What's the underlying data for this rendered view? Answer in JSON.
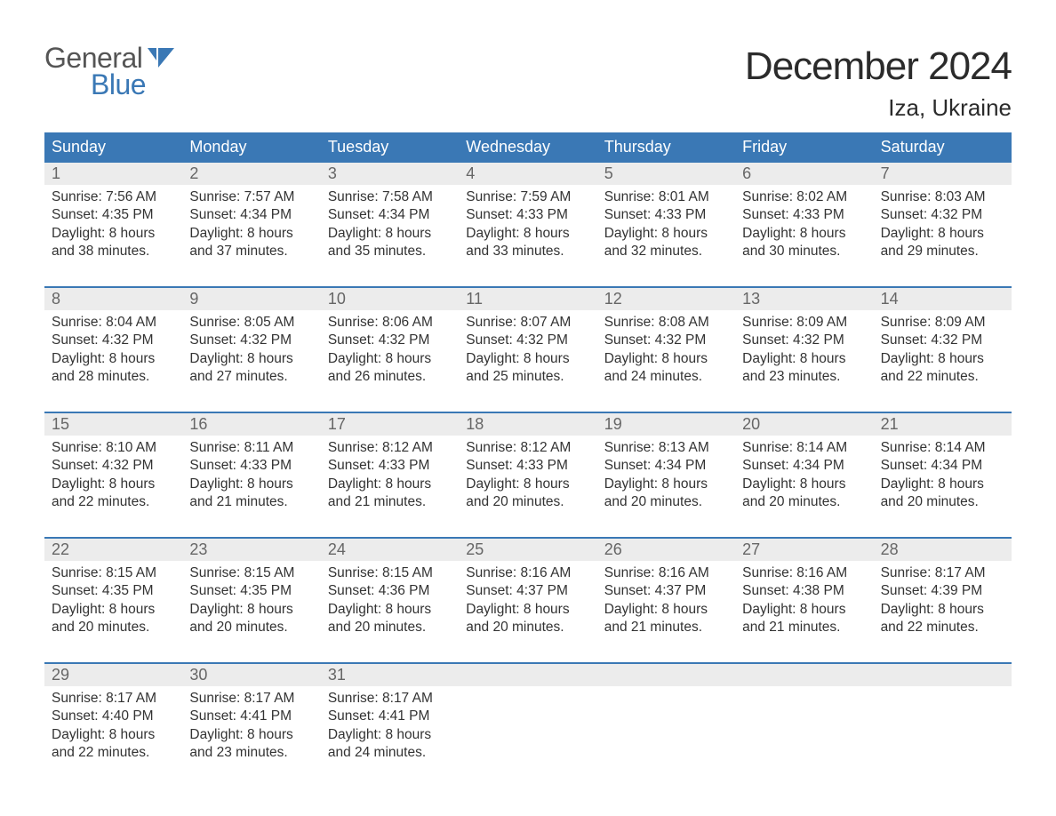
{
  "branding": {
    "logo_top": "General",
    "logo_bottom": "Blue",
    "logo_mark_color": "#3a78b5",
    "logo_text_gray": "#555555"
  },
  "header": {
    "title": "December 2024",
    "location": "Iza, Ukraine"
  },
  "style": {
    "header_bg": "#3a78b5",
    "header_fg": "#ffffff",
    "daynum_bg": "#ececec",
    "daynum_fg": "#666666",
    "border_color": "#3a78b5",
    "body_fg": "#333333",
    "background": "#ffffff",
    "title_fontsize": 44,
    "location_fontsize": 26,
    "weekday_fontsize": 18,
    "body_fontsize": 15.5
  },
  "weekdays": [
    "Sunday",
    "Monday",
    "Tuesday",
    "Wednesday",
    "Thursday",
    "Friday",
    "Saturday"
  ],
  "labels": {
    "sunrise": "Sunrise:",
    "sunset": "Sunset:",
    "daylight": "Daylight:",
    "hours": "hours",
    "and": "and",
    "minutes": "minutes."
  },
  "days": [
    {
      "n": 1,
      "sunrise": "7:56 AM",
      "sunset": "4:35 PM",
      "dl_h": 8,
      "dl_m": 38
    },
    {
      "n": 2,
      "sunrise": "7:57 AM",
      "sunset": "4:34 PM",
      "dl_h": 8,
      "dl_m": 37
    },
    {
      "n": 3,
      "sunrise": "7:58 AM",
      "sunset": "4:34 PM",
      "dl_h": 8,
      "dl_m": 35
    },
    {
      "n": 4,
      "sunrise": "7:59 AM",
      "sunset": "4:33 PM",
      "dl_h": 8,
      "dl_m": 33
    },
    {
      "n": 5,
      "sunrise": "8:01 AM",
      "sunset": "4:33 PM",
      "dl_h": 8,
      "dl_m": 32
    },
    {
      "n": 6,
      "sunrise": "8:02 AM",
      "sunset": "4:33 PM",
      "dl_h": 8,
      "dl_m": 30
    },
    {
      "n": 7,
      "sunrise": "8:03 AM",
      "sunset": "4:32 PM",
      "dl_h": 8,
      "dl_m": 29
    },
    {
      "n": 8,
      "sunrise": "8:04 AM",
      "sunset": "4:32 PM",
      "dl_h": 8,
      "dl_m": 28
    },
    {
      "n": 9,
      "sunrise": "8:05 AM",
      "sunset": "4:32 PM",
      "dl_h": 8,
      "dl_m": 27
    },
    {
      "n": 10,
      "sunrise": "8:06 AM",
      "sunset": "4:32 PM",
      "dl_h": 8,
      "dl_m": 26
    },
    {
      "n": 11,
      "sunrise": "8:07 AM",
      "sunset": "4:32 PM",
      "dl_h": 8,
      "dl_m": 25
    },
    {
      "n": 12,
      "sunrise": "8:08 AM",
      "sunset": "4:32 PM",
      "dl_h": 8,
      "dl_m": 24
    },
    {
      "n": 13,
      "sunrise": "8:09 AM",
      "sunset": "4:32 PM",
      "dl_h": 8,
      "dl_m": 23
    },
    {
      "n": 14,
      "sunrise": "8:09 AM",
      "sunset": "4:32 PM",
      "dl_h": 8,
      "dl_m": 22
    },
    {
      "n": 15,
      "sunrise": "8:10 AM",
      "sunset": "4:32 PM",
      "dl_h": 8,
      "dl_m": 22
    },
    {
      "n": 16,
      "sunrise": "8:11 AM",
      "sunset": "4:33 PM",
      "dl_h": 8,
      "dl_m": 21
    },
    {
      "n": 17,
      "sunrise": "8:12 AM",
      "sunset": "4:33 PM",
      "dl_h": 8,
      "dl_m": 21
    },
    {
      "n": 18,
      "sunrise": "8:12 AM",
      "sunset": "4:33 PM",
      "dl_h": 8,
      "dl_m": 20
    },
    {
      "n": 19,
      "sunrise": "8:13 AM",
      "sunset": "4:34 PM",
      "dl_h": 8,
      "dl_m": 20
    },
    {
      "n": 20,
      "sunrise": "8:14 AM",
      "sunset": "4:34 PM",
      "dl_h": 8,
      "dl_m": 20
    },
    {
      "n": 21,
      "sunrise": "8:14 AM",
      "sunset": "4:34 PM",
      "dl_h": 8,
      "dl_m": 20
    },
    {
      "n": 22,
      "sunrise": "8:15 AM",
      "sunset": "4:35 PM",
      "dl_h": 8,
      "dl_m": 20
    },
    {
      "n": 23,
      "sunrise": "8:15 AM",
      "sunset": "4:35 PM",
      "dl_h": 8,
      "dl_m": 20
    },
    {
      "n": 24,
      "sunrise": "8:15 AM",
      "sunset": "4:36 PM",
      "dl_h": 8,
      "dl_m": 20
    },
    {
      "n": 25,
      "sunrise": "8:16 AM",
      "sunset": "4:37 PM",
      "dl_h": 8,
      "dl_m": 20
    },
    {
      "n": 26,
      "sunrise": "8:16 AM",
      "sunset": "4:37 PM",
      "dl_h": 8,
      "dl_m": 21
    },
    {
      "n": 27,
      "sunrise": "8:16 AM",
      "sunset": "4:38 PM",
      "dl_h": 8,
      "dl_m": 21
    },
    {
      "n": 28,
      "sunrise": "8:17 AM",
      "sunset": "4:39 PM",
      "dl_h": 8,
      "dl_m": 22
    },
    {
      "n": 29,
      "sunrise": "8:17 AM",
      "sunset": "4:40 PM",
      "dl_h": 8,
      "dl_m": 22
    },
    {
      "n": 30,
      "sunrise": "8:17 AM",
      "sunset": "4:41 PM",
      "dl_h": 8,
      "dl_m": 23
    },
    {
      "n": 31,
      "sunrise": "8:17 AM",
      "sunset": "4:41 PM",
      "dl_h": 8,
      "dl_m": 24
    }
  ],
  "layout": {
    "start_weekday": 0,
    "weeks": 5,
    "cols": 7
  }
}
